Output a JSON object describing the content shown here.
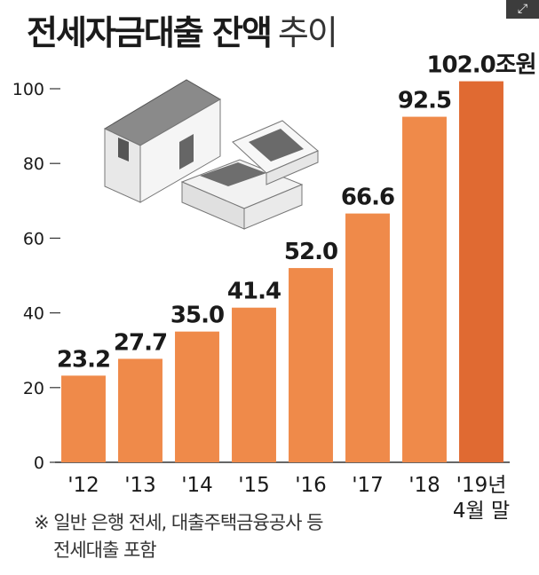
{
  "title": {
    "main": "전세자금대출 잔액",
    "sub": "추이"
  },
  "expand_icon": "expand-icon",
  "colors": {
    "bar": "#ef8a4a",
    "bar_highlight": "#e06a32",
    "axis": "#333333",
    "text": "#1a1a1a"
  },
  "chart_data": {
    "type": "bar",
    "categories": [
      "'12",
      "'13",
      "'14",
      "'15",
      "'16",
      "'17",
      "'18",
      "'19년 4월 말"
    ],
    "category_lines": [
      [
        "'12"
      ],
      [
        "'13"
      ],
      [
        "'14"
      ],
      [
        "'15"
      ],
      [
        "'16"
      ],
      [
        "'17"
      ],
      [
        "'18"
      ],
      [
        "'19년",
        "4월 말"
      ]
    ],
    "values": [
      23.2,
      27.7,
      35.0,
      41.4,
      52.0,
      66.6,
      92.5,
      102.0
    ],
    "value_labels": [
      "23.2",
      "27.7",
      "35.0",
      "41.4",
      "52.0",
      "66.6",
      "92.5",
      "102.0조원"
    ],
    "ylim": [
      0,
      100
    ],
    "yticks": [
      0,
      20,
      40,
      60,
      80,
      100
    ],
    "title": "전세자금대출 잔액 추이",
    "xlabel": "",
    "ylabel": "",
    "grid": false,
    "highlight_index": 7
  },
  "footnote": {
    "line1": "※ 일반 은행 전세, 대출주택금융공사 등",
    "line2": "전세대출 포함"
  }
}
